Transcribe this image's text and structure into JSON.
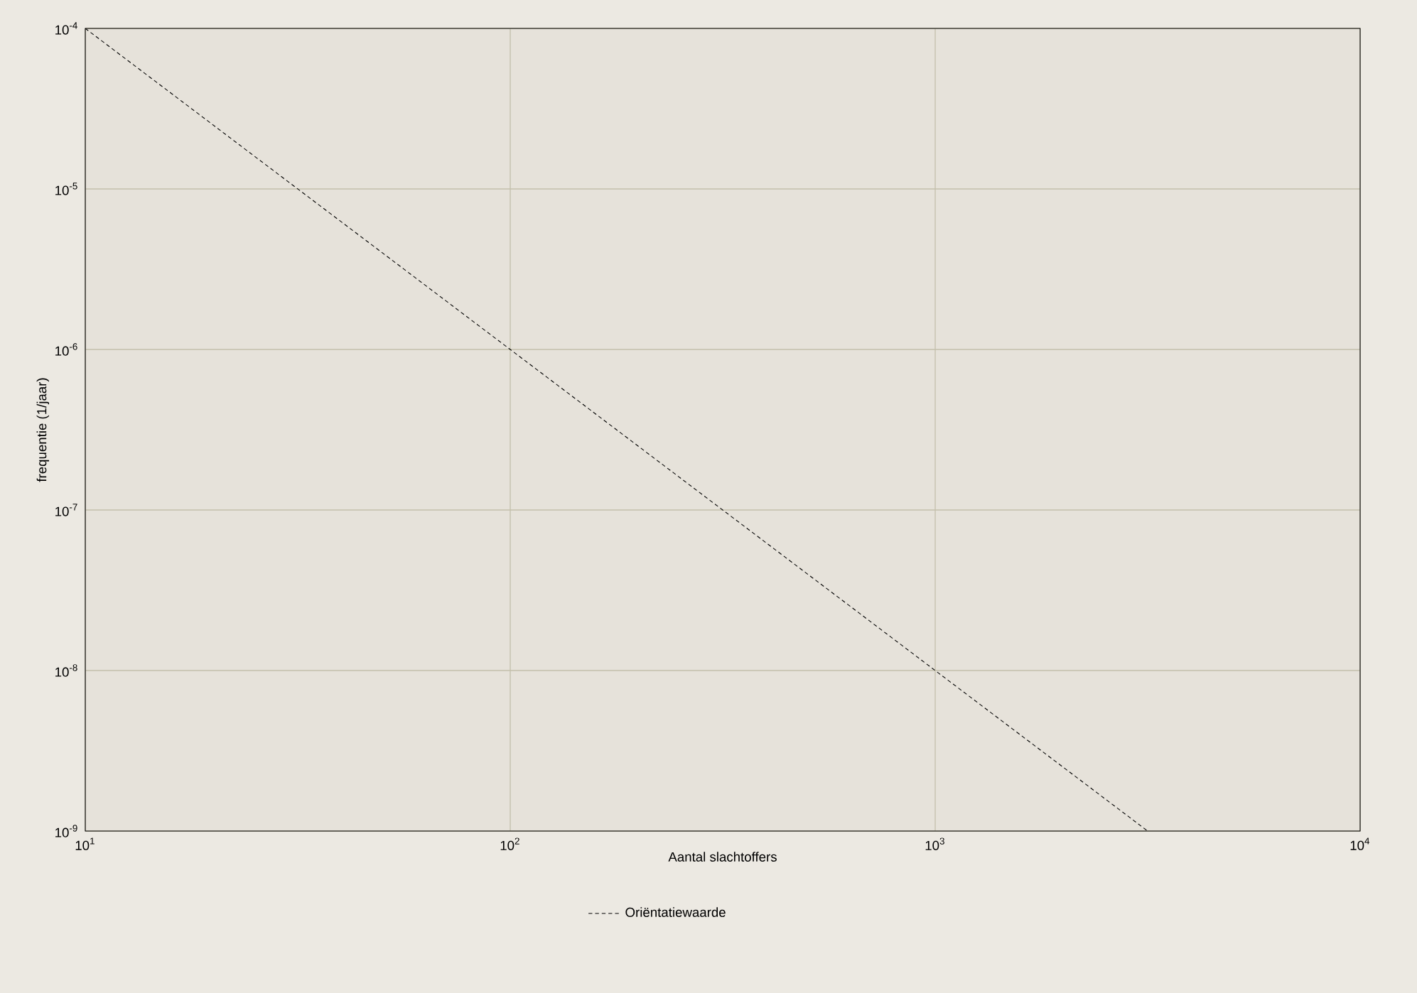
{
  "chart_data": {
    "type": "line",
    "xlabel": "Aantal slachtoffers",
    "ylabel": "frequentie (1/jaar)",
    "log": "xy",
    "x": [
      10,
      100,
      1000,
      3162.28
    ],
    "series": [
      {
        "name": "Oriëntatiewaarde",
        "color": "#000000",
        "values": [
          0.0001,
          1e-06,
          1e-08,
          1e-09
        ]
      }
    ],
    "xlim": [
      10,
      10000
    ],
    "xticks": [
      {
        "value": 10,
        "label": "10$^{1}$"
      },
      {
        "value": 100,
        "label": "10$^{2}$"
      },
      {
        "value": 1000,
        "label": "10$^{3}$"
      },
      {
        "value": 10000,
        "label": "10$^{4}$"
      }
    ],
    "ylim": [
      1e-09,
      0.0001
    ],
    "yticks": [
      {
        "value": 1e-09,
        "label": "10$^{-9}$"
      },
      {
        "value": 1e-08,
        "label": "10$^{-8}$"
      },
      {
        "value": 1e-07,
        "label": "10$^{-7}$"
      },
      {
        "value": 1e-06,
        "label": "10$^{-6}$"
      },
      {
        "value": 1e-05,
        "label": "10$^{-5}$"
      },
      {
        "value": 0.0001,
        "label": "10$^{-4}$"
      }
    ],
    "grid": true,
    "legend": "bottom",
    "line_style": "dashed"
  }
}
